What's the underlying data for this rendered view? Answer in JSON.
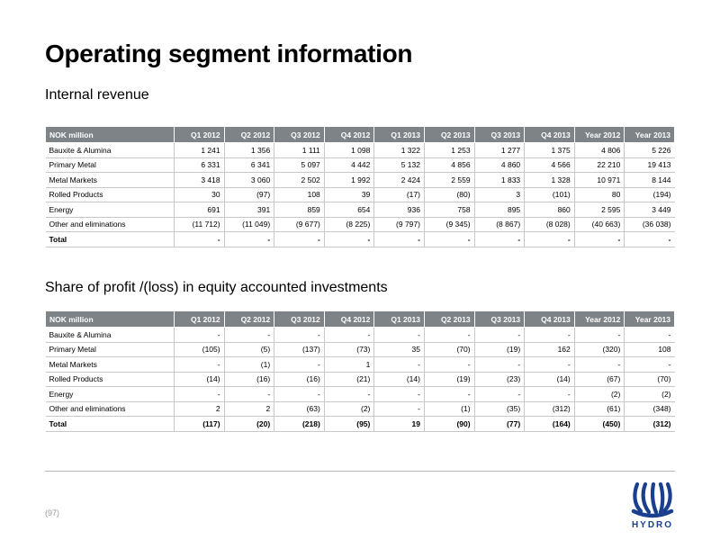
{
  "page": {
    "title": "Operating segment information",
    "page_number": "(97)"
  },
  "internal_revenue": {
    "heading": "Internal revenue",
    "headers": [
      "NOK million",
      "Q1 2012",
      "Q2 2012",
      "Q3 2012",
      "Q4 2012",
      "Q1 2013",
      "Q2 2013",
      "Q3 2013",
      "Q4 2013",
      "Year 2012",
      "Year 2013"
    ],
    "rows": [
      [
        "Bauxite & Alumina",
        "1 241",
        "1 356",
        "1 111",
        "1 098",
        "1 322",
        "1 253",
        "1 277",
        "1 375",
        "4 806",
        "5 226"
      ],
      [
        "Primary Metal",
        "6 331",
        "6 341",
        "5 097",
        "4 442",
        "5 132",
        "4 856",
        "4 860",
        "4 566",
        "22 210",
        "19 413"
      ],
      [
        "Metal Markets",
        "3 418",
        "3 060",
        "2 502",
        "1 992",
        "2 424",
        "2 559",
        "1 833",
        "1 328",
        "10 971",
        "8 144"
      ],
      [
        "Rolled Products",
        "30",
        "(97)",
        "108",
        "39",
        "(17)",
        "(80)",
        "3",
        "(101)",
        "80",
        "(194)"
      ],
      [
        "Energy",
        "691",
        "391",
        "859",
        "654",
        "936",
        "758",
        "895",
        "860",
        "2 595",
        "3 449"
      ],
      [
        "Other and eliminations",
        "(11 712)",
        "(11 049)",
        "(9 677)",
        "(8 225)",
        "(9 797)",
        "(9 345)",
        "(8 867)",
        "(8 028)",
        "(40 663)",
        "(36 038)"
      ],
      [
        "Total",
        "-",
        "-",
        "-",
        "-",
        "-",
        "-",
        "-",
        "-",
        "-",
        "-"
      ]
    ]
  },
  "share_of_profit": {
    "heading": "Share of profit /(loss) in equity accounted investments",
    "headers": [
      "NOK million",
      "Q1 2012",
      "Q2 2012",
      "Q3 2012",
      "Q4 2012",
      "Q1 2013",
      "Q2 2013",
      "Q3 2013",
      "Q4 2013",
      "Year 2012",
      "Year 2013"
    ],
    "rows": [
      [
        "Bauxite & Alumina",
        "-",
        "-",
        "-",
        "-",
        "-",
        "-",
        "-",
        "-",
        "-",
        "-"
      ],
      [
        "Primary Metal",
        "(105)",
        "(5)",
        "(137)",
        "(73)",
        "35",
        "(70)",
        "(19)",
        "162",
        "(320)",
        "108"
      ],
      [
        "Metal Markets",
        "-",
        "(1)",
        "-",
        "1",
        "-",
        "-",
        "-",
        "-",
        "-",
        "-"
      ],
      [
        "Rolled Products",
        "(14)",
        "(16)",
        "(16)",
        "(21)",
        "(14)",
        "(19)",
        "(23)",
        "(14)",
        "(67)",
        "(70)"
      ],
      [
        "Energy",
        "-",
        "-",
        "-",
        "-",
        "-",
        "-",
        "-",
        "-",
        "(2)",
        "(2)"
      ],
      [
        "Other and eliminations",
        "2",
        "2",
        "(63)",
        "(2)",
        "-",
        "(1)",
        "(35)",
        "(312)",
        "(61)",
        "(348)"
      ],
      [
        "Total",
        "(117)",
        "(20)",
        "(218)",
        "(95)",
        "19",
        "(90)",
        "(77)",
        "(164)",
        "(450)",
        "(312)"
      ]
    ]
  },
  "logo": {
    "text": "HYDRO",
    "icon": "hydro-viking-ship-icon",
    "color": "#1b3f8f"
  },
  "colors": {
    "header_bg": "#7e8388",
    "grid": "#c8c8c8"
  }
}
